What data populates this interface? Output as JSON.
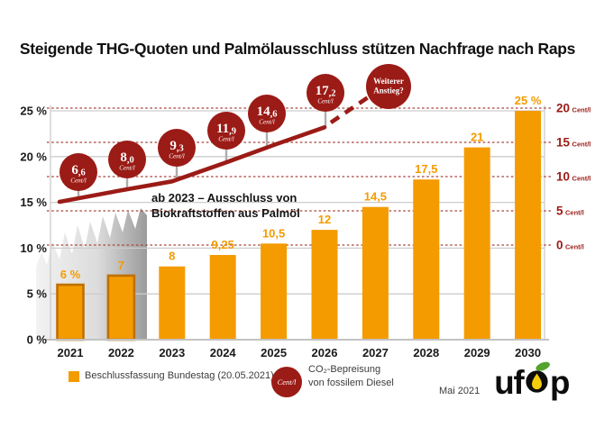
{
  "title": "Steigende THG-Quoten und Palmölausschluss stützen Nachfrage nach Raps",
  "colors": {
    "orange": "#F49B00",
    "dark_red": "#9B1B16",
    "grid_red": "#A8453E",
    "grid_gray": "#CDCDCD",
    "past_bar_stroke": "#BF7000",
    "black": "#1A1A1A"
  },
  "chart_data": {
    "type": "bar+line",
    "categories": [
      "2021",
      "2022",
      "2023",
      "2024",
      "2025",
      "2026",
      "2027",
      "2028",
      "2029",
      "2030"
    ],
    "bar_series": {
      "name": "Beschlussfassung Bundestag (20.05.2021)",
      "unit": "%",
      "values": [
        6,
        7,
        8,
        9.25,
        10.5,
        12,
        14.5,
        17.5,
        21,
        25
      ],
      "value_labels": [
        "6 %",
        "7",
        "8",
        "9,25",
        "10,5",
        "12",
        "14,5",
        "17,5",
        "21",
        "25 %"
      ],
      "highlight_past_years": [
        "2021",
        "2022"
      ]
    },
    "line_series": {
      "name": "CO₂-Bepreisung von fossilem Diesel",
      "unit": "Cent/l",
      "categories": [
        "2021",
        "2022",
        "2023",
        "2024",
        "2025",
        "2026"
      ],
      "values": [
        6.6,
        8.0,
        9.3,
        11.9,
        14.6,
        17.2
      ],
      "value_labels": [
        "6,6",
        "8,0",
        "9,3",
        "11,9",
        "14,6",
        "17,2"
      ],
      "projection_label_lines": [
        "Weiterer",
        "Anstieg?"
      ]
    },
    "left_axis": {
      "tick_labels": [
        "0 %",
        "5 %",
        "10 %",
        "15 %",
        "20 %",
        "25 %"
      ],
      "range": [
        0,
        25
      ]
    },
    "right_axis": {
      "tick_values": [
        "0",
        "5",
        "10",
        "15",
        "20"
      ],
      "unit": "Cent/l",
      "range": [
        0,
        20
      ]
    },
    "annotation_line1": "ab 2023 – Ausschluss von",
    "annotation_line2": "Biokraftstoffen aus Palmöl",
    "badge_unit": "Cent/l"
  },
  "legend": {
    "bar_label": "Beschlussfassung Bundestag (20.05.2021)",
    "line_badge_text": "Cent/l",
    "line_label_line1": "CO₂-Bepreisung",
    "line_label_line2": "von fossilem Diesel"
  },
  "footer": {
    "date": "Mai 2021",
    "logo_uf": "uf",
    "logo_p": "p"
  }
}
